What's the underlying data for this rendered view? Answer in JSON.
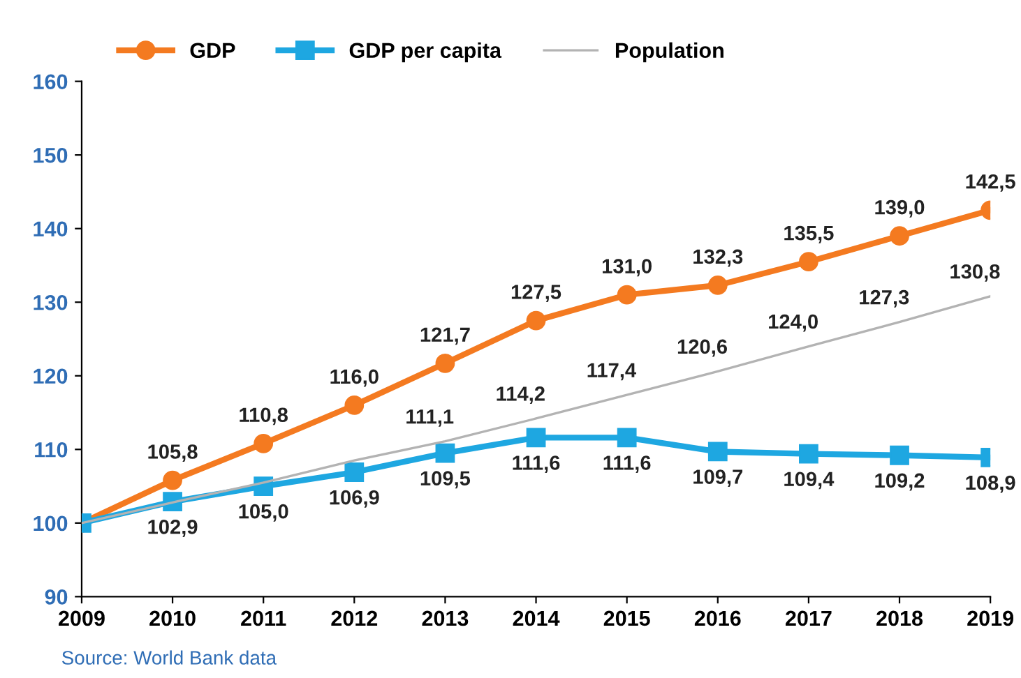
{
  "chart_data": {
    "type": "line",
    "categories": [
      "2009",
      "2010",
      "2011",
      "2012",
      "2013",
      "2014",
      "2015",
      "2016",
      "2017",
      "2018",
      "2019"
    ],
    "series": [
      {
        "name": "GDP",
        "color": "#f47a20",
        "marker": "circle",
        "values": [
          100,
          105.8,
          110.8,
          116.0,
          121.7,
          127.5,
          131.0,
          132.3,
          135.5,
          139.0,
          142.5
        ],
        "value_labels": [
          null,
          "105,8",
          "110,8",
          "116,0",
          "121,7",
          "127,5",
          "131,0",
          "132,3",
          "135,5",
          "139,0",
          "142,5"
        ]
      },
      {
        "name": "GDP per capita",
        "color": "#1ea7e1",
        "marker": "square",
        "values": [
          100,
          102.9,
          105.0,
          106.9,
          109.5,
          111.6,
          111.6,
          109.7,
          109.4,
          109.2,
          108.9
        ],
        "value_labels": [
          null,
          "102,9",
          "105,0",
          "106,9",
          "109,5",
          "111,6",
          "111,6",
          "109,7",
          "109,4",
          "109,2",
          "108,9"
        ]
      },
      {
        "name": "Population",
        "color": "#b3b3b3",
        "marker": "none",
        "values": [
          100,
          102.8,
          105.5,
          108.5,
          111.1,
          114.2,
          117.4,
          120.6,
          124.0,
          127.3,
          130.8
        ],
        "value_labels": [
          null,
          null,
          null,
          null,
          "111,1",
          "114,2",
          "117,4",
          "120,6",
          "124,0",
          "127,3",
          "130,8"
        ]
      }
    ],
    "ylim": [
      90,
      160
    ],
    "yticks": [
      90,
      100,
      110,
      120,
      130,
      140,
      150,
      160
    ],
    "grid": false,
    "legend": "top left",
    "annotations": [
      "Source: World Bank data"
    ]
  }
}
